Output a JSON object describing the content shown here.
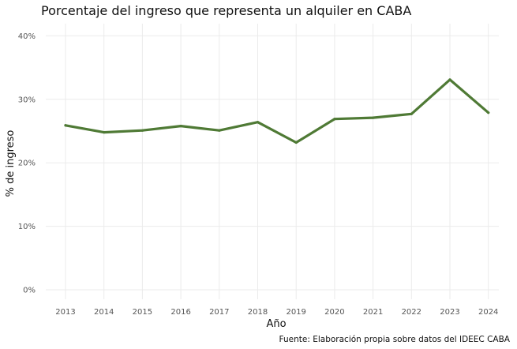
{
  "chart_data": {
    "type": "line",
    "title": "Porcentaje del ingreso que representa un alquiler en CABA",
    "xlabel": "Año",
    "ylabel": "% de ingreso",
    "caption": "Fuente: Elaboración propia sobre datos del IDEEC CABA",
    "x": [
      2013,
      2014,
      2015,
      2016,
      2017,
      2018,
      2019,
      2020,
      2021,
      2022,
      2023,
      2024
    ],
    "x_tick_labels": [
      "2013",
      "2014",
      "2015",
      "2016",
      "2017",
      "2018",
      "2019",
      "2020",
      "2021",
      "2022",
      "2023",
      "2024"
    ],
    "series": [
      {
        "values": [
          25.9,
          24.8,
          25.1,
          25.8,
          25.1,
          26.4,
          23.2,
          26.9,
          27.1,
          27.7,
          33.1,
          27.9
        ]
      }
    ],
    "ylim": [
      0,
      40
    ],
    "y_ticks": [
      0,
      10,
      20,
      30,
      40
    ],
    "y_tick_labels": [
      "0%",
      "10%",
      "20%",
      "30%",
      "40%"
    ],
    "grid": true,
    "legend": "none",
    "line_color": "#4f7a35"
  }
}
